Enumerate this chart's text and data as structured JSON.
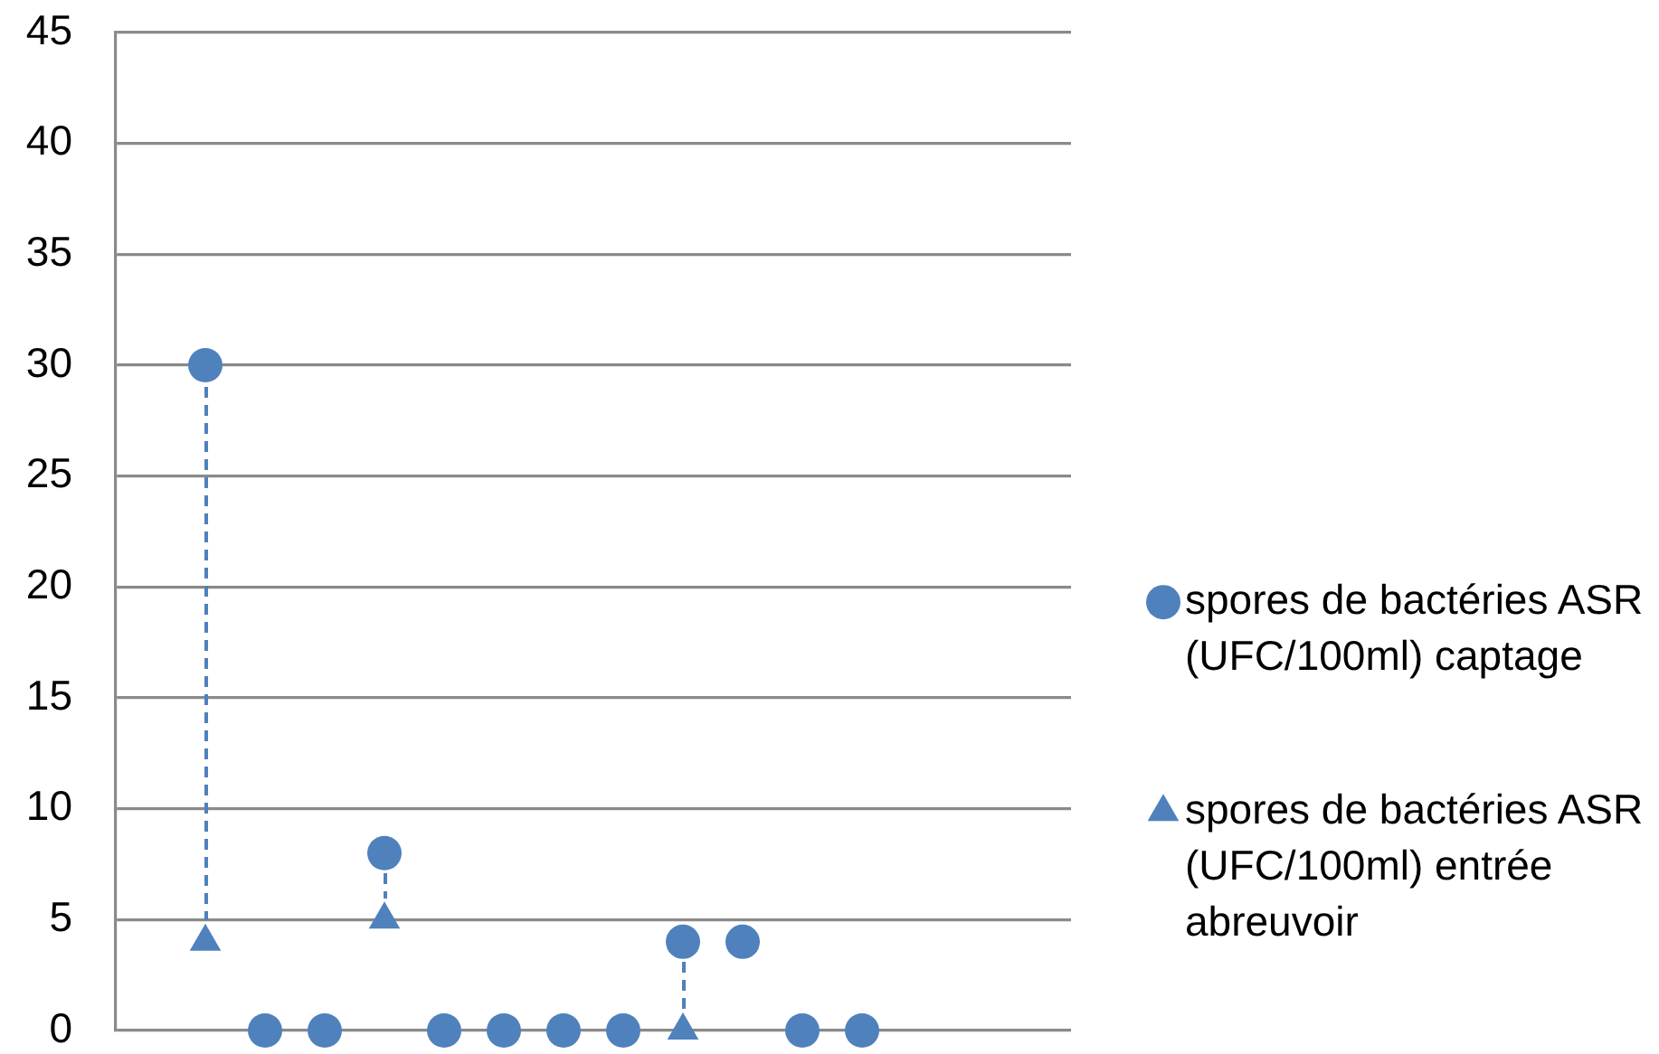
{
  "chart_data": {
    "type": "scatter",
    "categories": [
      null,
      null,
      null,
      null,
      null,
      null,
      null,
      null,
      null,
      null,
      null,
      null,
      null,
      null,
      null,
      null
    ],
    "series": [
      {
        "name": "spores de bactéries ASR (UFC/100ml) captage",
        "color": "#4f81bd",
        "marker": "circle",
        "values": [
          null,
          30,
          0,
          0,
          8,
          0,
          0,
          0,
          0,
          4,
          4,
          0,
          0,
          null,
          null,
          null
        ]
      },
      {
        "name": "spores de bactéries ASR (UFC/100ml) entrée abreuvoir",
        "color": "#4f81bd",
        "marker": "triangle",
        "values": [
          null,
          4,
          null,
          null,
          5,
          null,
          null,
          null,
          null,
          0,
          null,
          null,
          null,
          null,
          null,
          null
        ]
      }
    ],
    "ylim": [
      0,
      45
    ],
    "yticks": [
      0,
      5,
      10,
      15,
      20,
      25,
      30,
      35,
      40,
      45
    ],
    "grid": "y",
    "legend": "right"
  }
}
